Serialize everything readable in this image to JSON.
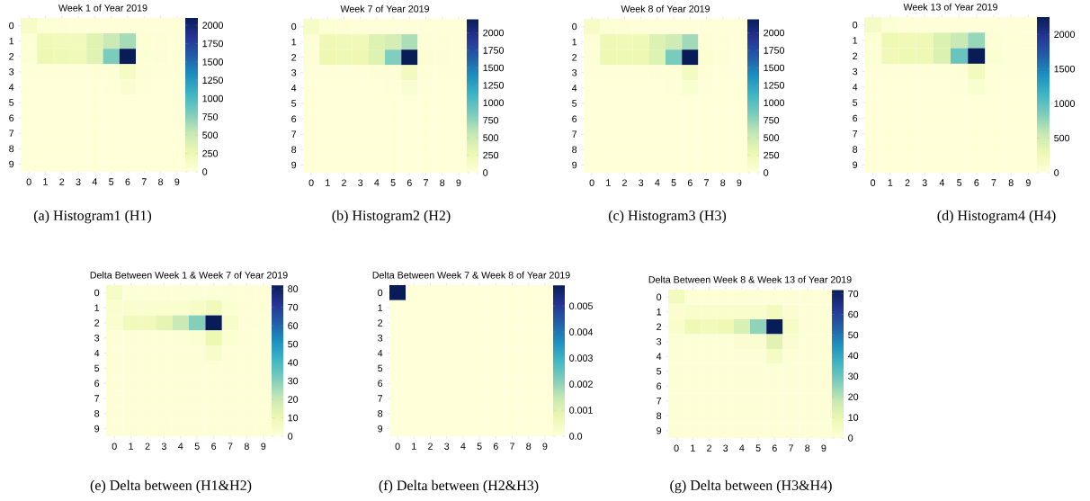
{
  "chart_data": [
    {
      "type": "heatmap",
      "title": "Week 1 of Year 2019",
      "annotations": [
        "(a) Histogram1 (H1)"
      ],
      "categories": [
        "0",
        "1",
        "2",
        "3",
        "4",
        "5",
        "6",
        "7",
        "8",
        "9"
      ],
      "y_categories": [
        "0",
        "1",
        "2",
        "3",
        "4",
        "5",
        "6",
        "7",
        "8",
        "9"
      ],
      "cells": [
        [
          120,
          40,
          20,
          10,
          10,
          10,
          10,
          10,
          10,
          10
        ],
        [
          40,
          220,
          200,
          200,
          350,
          500,
          650,
          30,
          20,
          10
        ],
        [
          40,
          250,
          230,
          220,
          350,
          800,
          2100,
          40,
          20,
          10
        ],
        [
          10,
          10,
          10,
          10,
          20,
          30,
          150,
          20,
          10,
          10
        ],
        [
          5,
          5,
          5,
          5,
          5,
          10,
          60,
          10,
          5,
          5
        ],
        [
          5,
          5,
          5,
          5,
          5,
          5,
          5,
          5,
          5,
          5
        ],
        [
          5,
          5,
          5,
          5,
          5,
          5,
          5,
          5,
          5,
          5
        ],
        [
          5,
          5,
          5,
          5,
          5,
          5,
          5,
          5,
          5,
          5
        ],
        [
          5,
          5,
          5,
          5,
          5,
          5,
          5,
          5,
          5,
          5
        ],
        [
          5,
          5,
          5,
          5,
          5,
          5,
          5,
          5,
          5,
          5
        ]
      ],
      "clim": [
        0,
        2100
      ],
      "cticks": [
        0,
        250,
        500,
        750,
        1000,
        1250,
        1500,
        1750,
        2000
      ]
    },
    {
      "type": "heatmap",
      "title": "Week 7 of Year 2019",
      "annotations": [
        "(b) Histogram2 (H2)"
      ],
      "categories": [
        "0",
        "1",
        "2",
        "3",
        "4",
        "5",
        "6",
        "7",
        "8",
        "9"
      ],
      "y_categories": [
        "0",
        "1",
        "2",
        "3",
        "4",
        "5",
        "6",
        "7",
        "8",
        "9"
      ],
      "cells": [
        [
          130,
          40,
          20,
          10,
          10,
          10,
          10,
          10,
          10,
          10
        ],
        [
          30,
          250,
          220,
          230,
          380,
          450,
          650,
          30,
          20,
          10
        ],
        [
          30,
          260,
          240,
          260,
          380,
          820,
          2200,
          50,
          20,
          10
        ],
        [
          10,
          10,
          10,
          10,
          20,
          30,
          180,
          20,
          10,
          10
        ],
        [
          5,
          5,
          5,
          5,
          5,
          10,
          70,
          10,
          5,
          5
        ],
        [
          5,
          5,
          5,
          5,
          5,
          5,
          5,
          5,
          5,
          5
        ],
        [
          5,
          5,
          5,
          5,
          5,
          5,
          5,
          5,
          5,
          5
        ],
        [
          5,
          5,
          5,
          5,
          5,
          5,
          5,
          5,
          5,
          5
        ],
        [
          5,
          5,
          5,
          5,
          5,
          5,
          5,
          5,
          5,
          5
        ],
        [
          5,
          5,
          5,
          5,
          5,
          5,
          5,
          5,
          5,
          5
        ]
      ],
      "clim": [
        0,
        2200
      ],
      "cticks": [
        0,
        250,
        500,
        750,
        1000,
        1250,
        1500,
        1750,
        2000
      ]
    },
    {
      "type": "heatmap",
      "title": "Week 8 of Year 2019",
      "annotations": [
        "(c) Histogram3 (H3)"
      ],
      "categories": [
        "0",
        "1",
        "2",
        "3",
        "4",
        "5",
        "6",
        "7",
        "8",
        "9"
      ],
      "y_categories": [
        "0",
        "1",
        "2",
        "3",
        "4",
        "5",
        "6",
        "7",
        "8",
        "9"
      ],
      "cells": [
        [
          130,
          40,
          20,
          10,
          10,
          10,
          10,
          10,
          10,
          10
        ],
        [
          30,
          250,
          220,
          240,
          400,
          500,
          700,
          30,
          20,
          10
        ],
        [
          30,
          260,
          240,
          260,
          380,
          850,
          2200,
          50,
          20,
          10
        ],
        [
          10,
          10,
          10,
          10,
          20,
          30,
          170,
          20,
          10,
          10
        ],
        [
          5,
          5,
          5,
          5,
          5,
          10,
          80,
          10,
          5,
          5
        ],
        [
          5,
          5,
          5,
          5,
          5,
          5,
          5,
          5,
          5,
          5
        ],
        [
          5,
          5,
          5,
          5,
          5,
          5,
          5,
          5,
          5,
          5
        ],
        [
          5,
          5,
          5,
          5,
          5,
          5,
          5,
          5,
          5,
          5
        ],
        [
          5,
          5,
          5,
          5,
          5,
          5,
          5,
          5,
          5,
          5
        ],
        [
          5,
          5,
          5,
          5,
          5,
          5,
          5,
          5,
          5,
          5
        ]
      ],
      "clim": [
        0,
        2200
      ],
      "cticks": [
        0,
        250,
        500,
        750,
        1000,
        1250,
        1500,
        1750,
        2000
      ]
    },
    {
      "type": "heatmap",
      "title": "Week 13 of Year 2019",
      "annotations": [
        "(d) Histogram4 (H4)"
      ],
      "categories": [
        "0",
        "1",
        "2",
        "3",
        "4",
        "5",
        "6",
        "7",
        "8",
        "9"
      ],
      "y_categories": [
        "0",
        "1",
        "2",
        "3",
        "4",
        "5",
        "6",
        "7",
        "8",
        "9"
      ],
      "cells": [
        [
          150,
          40,
          20,
          10,
          10,
          10,
          10,
          10,
          10,
          10
        ],
        [
          40,
          260,
          240,
          250,
          420,
          550,
          750,
          40,
          20,
          10
        ],
        [
          40,
          240,
          260,
          260,
          420,
          950,
          2250,
          60,
          20,
          10
        ],
        [
          10,
          10,
          10,
          10,
          20,
          30,
          200,
          20,
          10,
          10
        ],
        [
          5,
          5,
          5,
          5,
          5,
          10,
          80,
          10,
          5,
          5
        ],
        [
          5,
          5,
          5,
          5,
          5,
          5,
          5,
          5,
          5,
          5
        ],
        [
          5,
          5,
          5,
          5,
          5,
          5,
          5,
          5,
          5,
          5
        ],
        [
          5,
          5,
          5,
          5,
          5,
          5,
          5,
          5,
          5,
          5
        ],
        [
          5,
          5,
          5,
          5,
          5,
          5,
          5,
          5,
          5,
          5
        ],
        [
          5,
          5,
          5,
          5,
          5,
          5,
          5,
          5,
          5,
          5
        ]
      ],
      "clim": [
        0,
        2250
      ],
      "cticks": [
        0,
        500,
        1000,
        1500,
        2000
      ]
    },
    {
      "type": "heatmap",
      "title": "Delta Between Week 1 & Week 7 of Year 2019",
      "annotations": [
        "(e) Delta between (H1&H2)"
      ],
      "categories": [
        "0",
        "1",
        "2",
        "3",
        "4",
        "5",
        "6",
        "7",
        "8",
        "9"
      ],
      "y_categories": [
        "0",
        "1",
        "2",
        "3",
        "4",
        "5",
        "6",
        "7",
        "8",
        "9"
      ],
      "cells": [
        [
          5,
          1,
          1,
          1,
          1,
          1,
          1,
          1,
          1,
          1
        ],
        [
          3,
          3,
          3,
          3,
          3,
          5,
          8,
          2,
          1,
          1
        ],
        [
          3,
          8,
          8,
          12,
          20,
          30,
          82,
          4,
          1,
          1
        ],
        [
          1,
          1,
          1,
          1,
          1,
          2,
          10,
          2,
          1,
          1
        ],
        [
          1,
          1,
          1,
          1,
          1,
          1,
          4,
          1,
          1,
          1
        ],
        [
          1,
          1,
          1,
          1,
          1,
          1,
          1,
          1,
          1,
          1
        ],
        [
          1,
          1,
          1,
          1,
          1,
          1,
          1,
          1,
          1,
          1
        ],
        [
          1,
          1,
          1,
          1,
          1,
          1,
          1,
          1,
          1,
          1
        ],
        [
          1,
          1,
          1,
          1,
          1,
          1,
          1,
          1,
          1,
          1
        ],
        [
          1,
          1,
          1,
          1,
          1,
          1,
          1,
          1,
          1,
          1
        ]
      ],
      "clim": [
        0,
        82
      ],
      "cticks": [
        0,
        10,
        20,
        30,
        40,
        50,
        60,
        70,
        80
      ]
    },
    {
      "type": "heatmap",
      "title": "Delta Between Week 7 & Week 8 of Year 2019",
      "annotations": [
        "(f) Delta between (H2&H3)"
      ],
      "categories": [
        "0",
        "1",
        "2",
        "3",
        "4",
        "5",
        "6",
        "7",
        "8",
        "9"
      ],
      "y_categories": [
        "0",
        "1",
        "2",
        "3",
        "4",
        "5",
        "6",
        "7",
        "8",
        "9"
      ],
      "cells": [
        [
          0.0058,
          0,
          0,
          0,
          0,
          0,
          0,
          0,
          0,
          0
        ],
        [
          0,
          0,
          0,
          0,
          0,
          0,
          0,
          0,
          0,
          0
        ],
        [
          0,
          0,
          0,
          0,
          0,
          0,
          0,
          0,
          0,
          0
        ],
        [
          0,
          0,
          0,
          0,
          0,
          0,
          0,
          0,
          0,
          0
        ],
        [
          0,
          0,
          0,
          0,
          0,
          0,
          0,
          0,
          0,
          0
        ],
        [
          0,
          0,
          0,
          0,
          0,
          0,
          0,
          0,
          0,
          0
        ],
        [
          0,
          0,
          0,
          0,
          0,
          0,
          0,
          0,
          0,
          0
        ],
        [
          0,
          0,
          0,
          0,
          0,
          0,
          0,
          0,
          0,
          0
        ],
        [
          0,
          0,
          0,
          0,
          0,
          0,
          0,
          0,
          0,
          0
        ],
        [
          0,
          0,
          0,
          0,
          0,
          0,
          0,
          0,
          0,
          0
        ]
      ],
      "clim": [
        0,
        0.0058
      ],
      "cticks": [
        {
          "value": 0,
          "label": "0.0"
        },
        0.001,
        0.002,
        0.003,
        0.004,
        0.005
      ]
    },
    {
      "type": "heatmap",
      "title": "Delta Between Week 8 & Week 13 of Year 2019",
      "annotations": [
        "(g) Delta between (H3&H4)"
      ],
      "categories": [
        "0",
        "1",
        "2",
        "3",
        "4",
        "5",
        "6",
        "7",
        "8",
        "9"
      ],
      "y_categories": [
        "0",
        "1",
        "2",
        "3",
        "4",
        "5",
        "6",
        "7",
        "8",
        "9"
      ],
      "cells": [
        [
          6,
          1,
          1,
          1,
          1,
          1,
          1,
          1,
          1,
          1
        ],
        [
          2,
          3,
          3,
          3,
          3,
          3,
          6,
          2,
          1,
          1
        ],
        [
          3,
          8,
          7,
          8,
          14,
          25,
          72,
          4,
          1,
          1
        ],
        [
          1,
          1,
          1,
          1,
          2,
          2,
          12,
          2,
          1,
          1
        ],
        [
          1,
          1,
          1,
          1,
          1,
          1,
          5,
          1,
          1,
          1
        ],
        [
          1,
          1,
          1,
          1,
          1,
          1,
          1,
          1,
          1,
          1
        ],
        [
          1,
          1,
          1,
          1,
          1,
          1,
          1,
          1,
          1,
          1
        ],
        [
          1,
          1,
          1,
          1,
          1,
          1,
          1,
          1,
          1,
          1
        ],
        [
          1,
          1,
          1,
          1,
          1,
          1,
          1,
          1,
          1,
          1
        ],
        [
          1,
          1,
          1,
          1,
          1,
          1,
          1,
          1,
          1,
          1
        ]
      ],
      "clim": [
        0,
        72
      ],
      "cticks": [
        0,
        10,
        20,
        30,
        40,
        50,
        60,
        70
      ]
    }
  ]
}
